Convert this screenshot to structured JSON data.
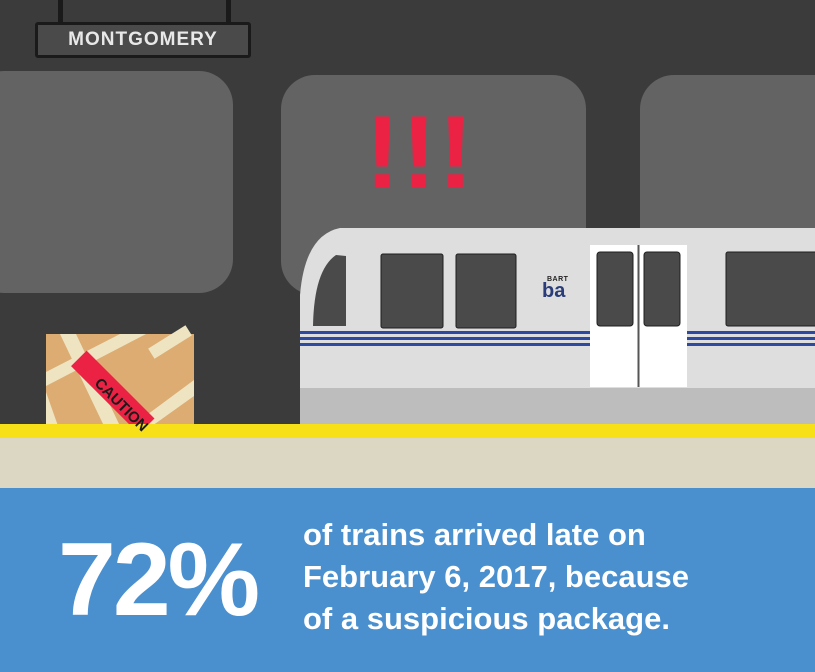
{
  "station": {
    "name": "MONTGOMERY"
  },
  "alert": {
    "marks": "!!!"
  },
  "package": {
    "label": "CAUTION"
  },
  "train": {
    "logo_word": "BART",
    "logo_mark": "ba"
  },
  "stat": {
    "value": "72%",
    "caption_lines": [
      "of trains arrived late on",
      "February 6, 2017, because",
      "of a suspicious package."
    ]
  },
  "colors": {
    "alert": "#ec2245",
    "panel": "#4a8fce",
    "platform_edge": "#f7e017",
    "platform": "#dcd7c2",
    "box": "#dcac73",
    "train_body": "#dedede",
    "train_stripe": "#2c4aa0"
  }
}
